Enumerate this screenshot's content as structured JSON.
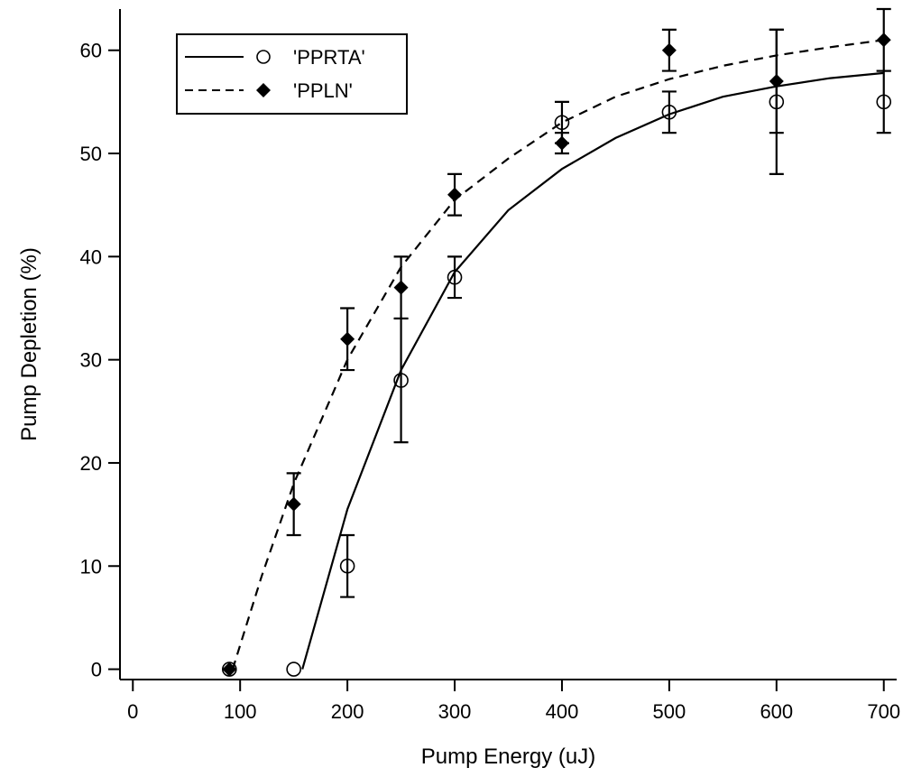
{
  "chart_data": {
    "type": "scatter",
    "title": "",
    "xlabel": "Pump Energy (uJ)",
    "ylabel": "Pump Depletion (%)",
    "xlim": [
      -12,
      712
    ],
    "ylim": [
      -1,
      64
    ],
    "xticks": [
      0,
      100,
      200,
      300,
      400,
      500,
      600,
      700
    ],
    "yticks": [
      0,
      10,
      20,
      30,
      40,
      50,
      60
    ],
    "grid": false,
    "legend_position": "top-left",
    "series": [
      {
        "name": "'PPRTA'",
        "marker": "open-circle",
        "line_style": "solid",
        "color": "#000000",
        "points": [
          {
            "x": 90,
            "y": 0
          },
          {
            "x": 150,
            "y": 0
          },
          {
            "x": 200,
            "y": 10,
            "err": 3
          },
          {
            "x": 250,
            "y": 28,
            "err": 6
          },
          {
            "x": 300,
            "y": 38,
            "err": 2
          },
          {
            "x": 400,
            "y": 53,
            "err": 2
          },
          {
            "x": 500,
            "y": 54,
            "err": 2
          },
          {
            "x": 600,
            "y": 55,
            "err": 7
          },
          {
            "x": 700,
            "y": 55,
            "err": 3
          }
        ],
        "fit": {
          "x": [
            158,
            200,
            250,
            300,
            350,
            400,
            450,
            500,
            550,
            600,
            650,
            700
          ],
          "y": [
            0,
            15.5,
            29,
            38.5,
            44.5,
            48.5,
            51.5,
            53.8,
            55.5,
            56.5,
            57.3,
            57.8
          ]
        }
      },
      {
        "name": "'PPLN'",
        "marker": "filled-diamond",
        "line_style": "dashed",
        "color": "#000000",
        "points": [
          {
            "x": 90,
            "y": 0
          },
          {
            "x": 150,
            "y": 16,
            "err": 3
          },
          {
            "x": 200,
            "y": 32,
            "err": 3
          },
          {
            "x": 250,
            "y": 37,
            "err": 3
          },
          {
            "x": 300,
            "y": 46,
            "err": 2
          },
          {
            "x": 400,
            "y": 51,
            "err": 1
          },
          {
            "x": 500,
            "y": 60,
            "err": 2
          },
          {
            "x": 600,
            "y": 57,
            "err": 5
          },
          {
            "x": 700,
            "y": 61,
            "err": 3
          }
        ],
        "fit": {
          "x": [
            93,
            120,
            150,
            200,
            250,
            300,
            350,
            400,
            450,
            500,
            550,
            600,
            650,
            700
          ],
          "y": [
            0,
            9,
            18,
            30,
            39,
            45.5,
            49.5,
            53,
            55.5,
            57.2,
            58.5,
            59.5,
            60.3,
            61
          ]
        }
      }
    ]
  }
}
